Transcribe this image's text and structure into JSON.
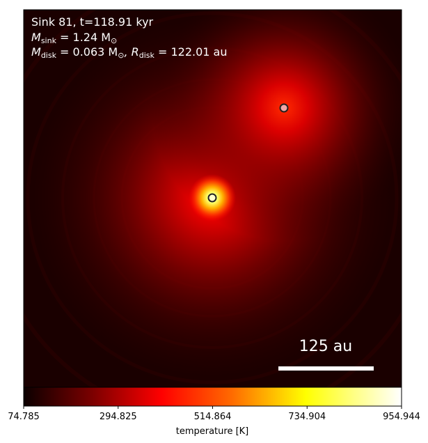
{
  "annotation": {
    "line1": "Sink 81, t=118.91 kyr",
    "line2_prefix": "M",
    "line2_sub": "sink",
    "line2_rest": " = 1.24 M",
    "line2_sun": "⊙",
    "line3_prefix": "M",
    "line3_sub": "disk",
    "line3_mid": " = 0.063 M",
    "line3_sun": "⊙",
    "line3_r": ", R",
    "line3_rsub": "disk",
    "line3_rest": " = 122.01 au"
  },
  "scale_bar": {
    "label": "125 au",
    "length_au": 125
  },
  "sinks": [
    {
      "name": "sink-81",
      "fill": "#ffffcc",
      "edge": "#222222",
      "glow": "#ffd23a"
    },
    {
      "name": "companion-sink",
      "fill": "#f2a6a6",
      "edge": "#222222",
      "glow": "#ff2a1a"
    }
  ],
  "colorbar": {
    "label": "temperature [K]",
    "ticks": [
      "74.785",
      "294.825",
      "514.864",
      "734.904",
      "954.944"
    ],
    "colormap": "hot",
    "range": [
      74.785,
      954.944
    ]
  }
}
